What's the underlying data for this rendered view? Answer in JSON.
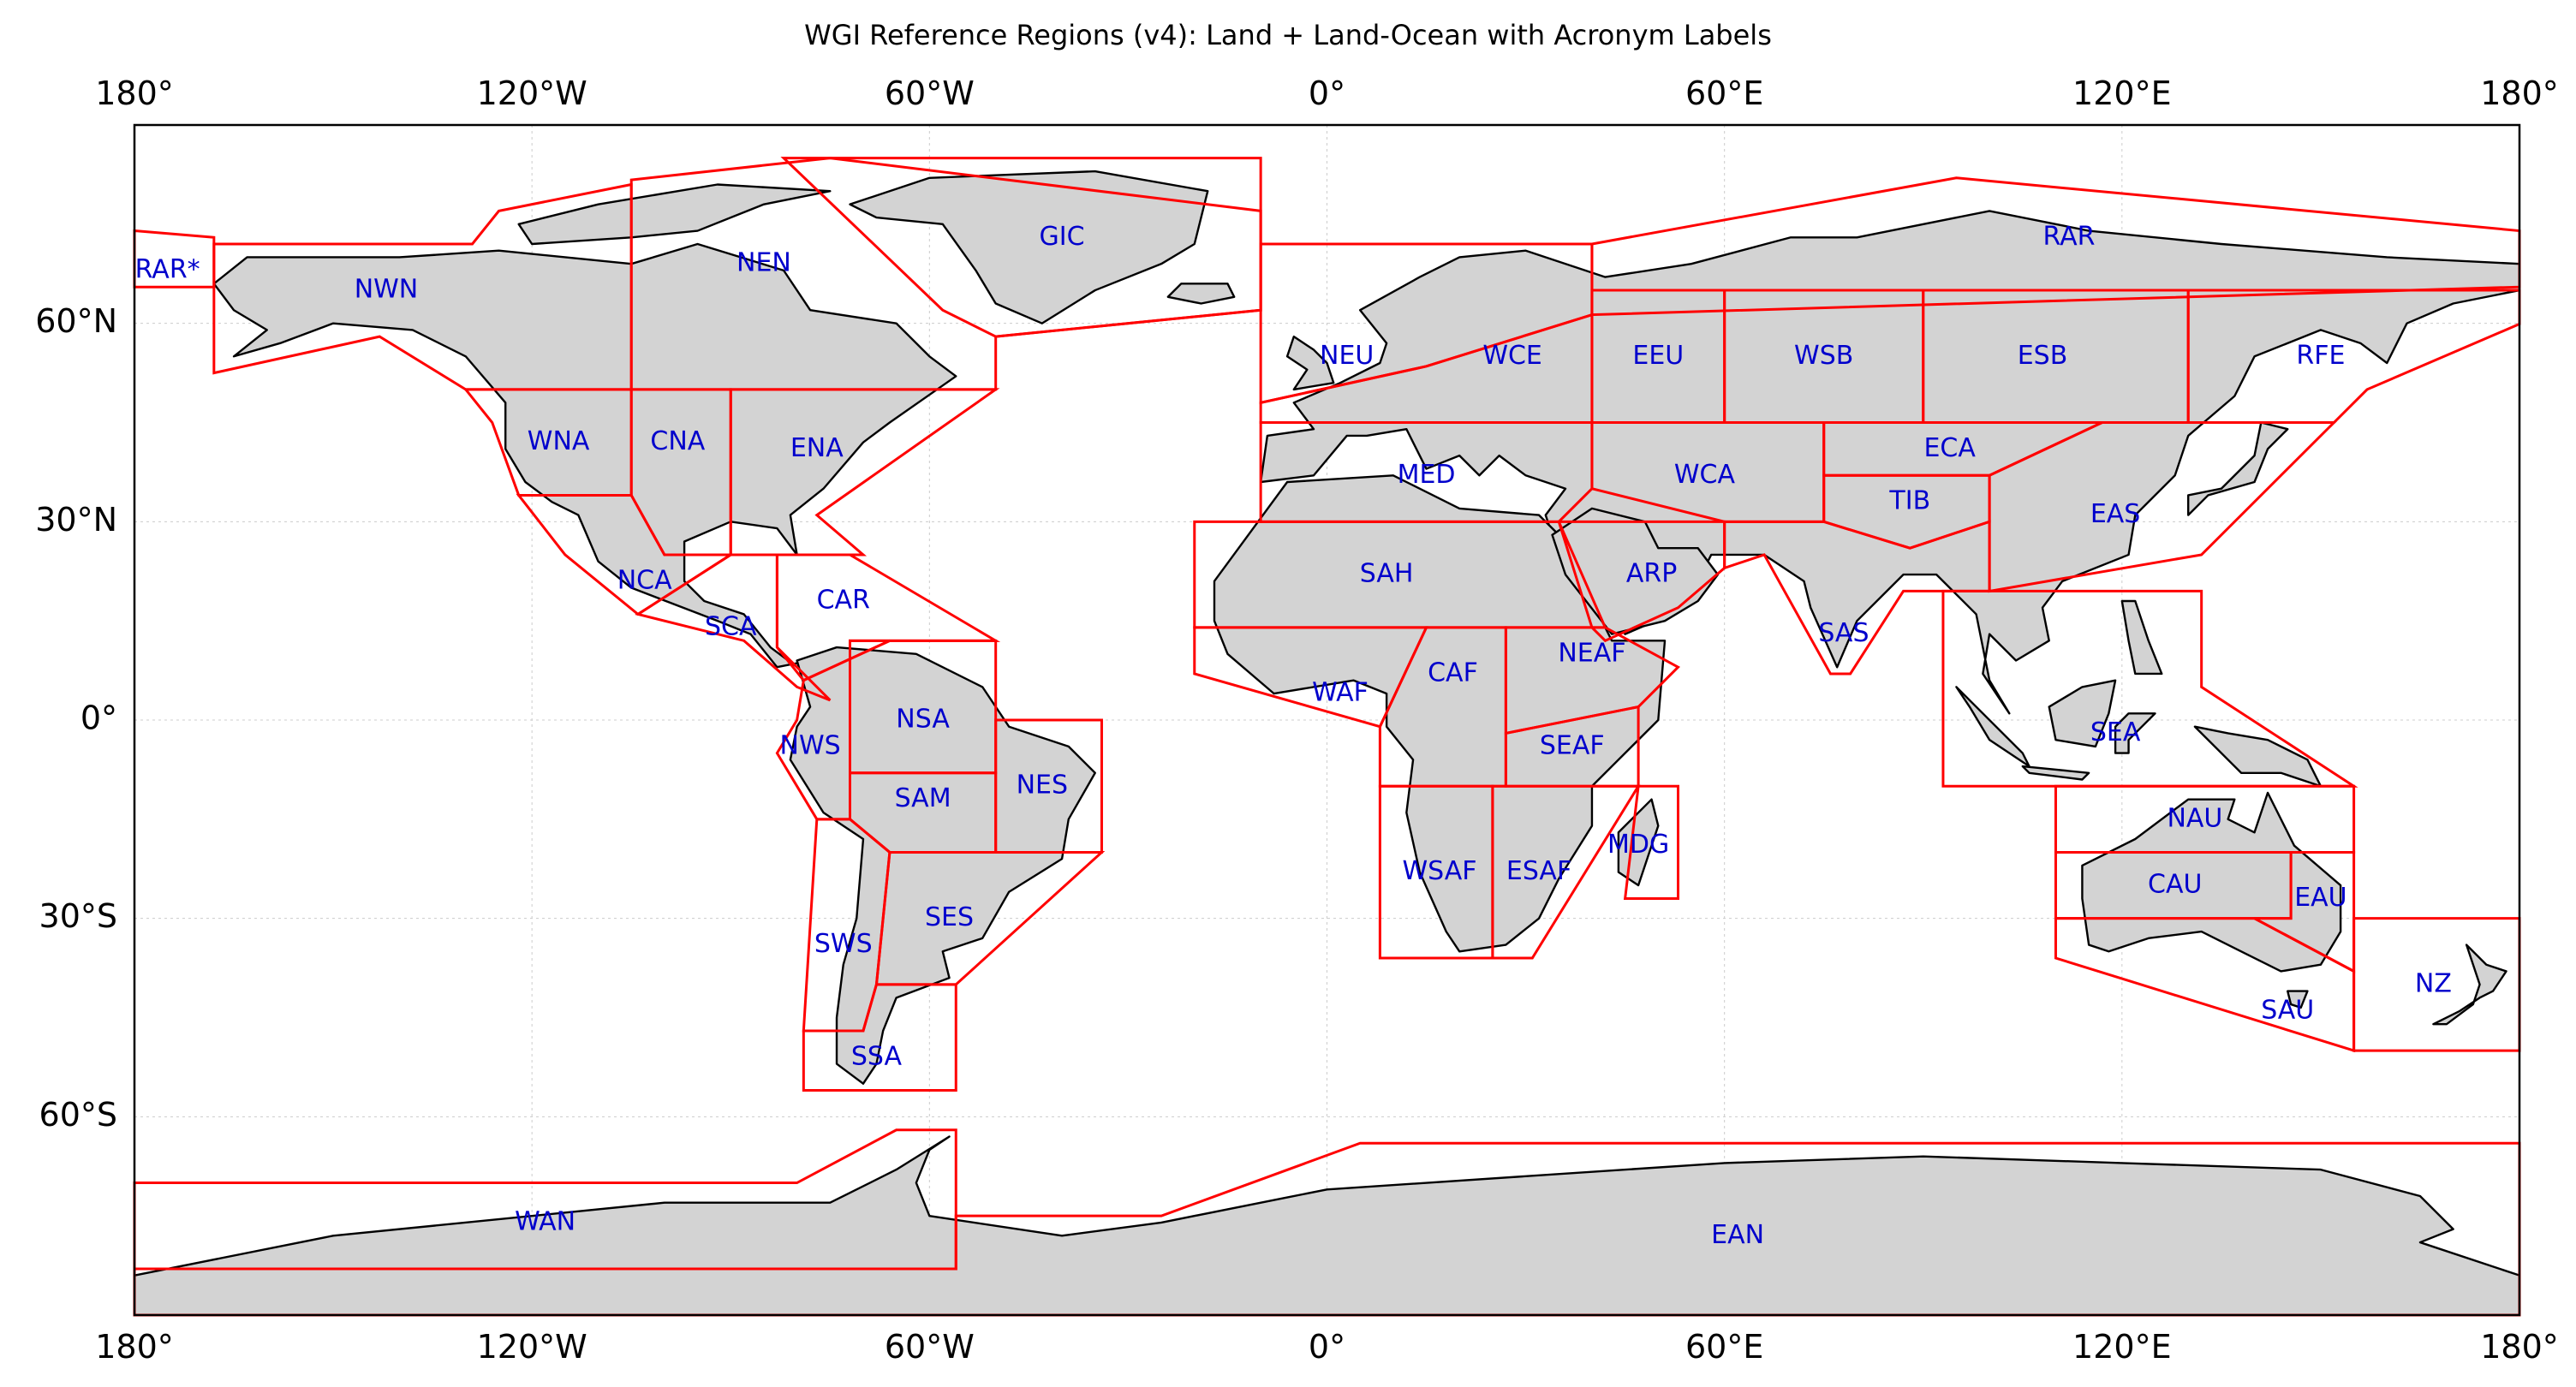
{
  "title": "WGI Reference Regions (v4): Land + Land-Ocean with Acronym Labels",
  "axes": {
    "lon_ticks": [
      {
        "lon": -180,
        "label": "180°"
      },
      {
        "lon": -120,
        "label": "120°W"
      },
      {
        "lon": -60,
        "label": "60°W"
      },
      {
        "lon": 0,
        "label": "0°"
      },
      {
        "lon": 60,
        "label": "60°E"
      },
      {
        "lon": 120,
        "label": "120°E"
      },
      {
        "lon": 180,
        "label": "180°"
      }
    ],
    "lat_ticks": [
      {
        "lat": 60,
        "label": "60°N"
      },
      {
        "lat": 30,
        "label": "30°N"
      },
      {
        "lat": 0,
        "label": "0°"
      },
      {
        "lat": -30,
        "label": "30°S"
      },
      {
        "lat": -60,
        "label": "60°S"
      }
    ],
    "lon_range": [
      -180,
      180
    ],
    "lat_range": [
      -90,
      90
    ],
    "grid": true
  },
  "colors": {
    "land": "#d3d3d3",
    "coast": "#000000",
    "region_outline": "#ff0000",
    "label": "#0000cc"
  },
  "regions": [
    {
      "acronym": "RAR*",
      "label_lon": -175,
      "label_lat": 68,
      "polygon": [
        [
          -180,
          74
        ],
        [
          -168,
          73
        ],
        [
          -168,
          65.5
        ],
        [
          -180,
          65.5
        ]
      ]
    },
    {
      "acronym": "NWN",
      "label_lon": -142,
      "label_lat": 65,
      "polygon": [
        [
          -168,
          72
        ],
        [
          -129,
          72
        ],
        [
          -125,
          77
        ],
        [
          -105,
          81
        ],
        [
          -105,
          50
        ],
        [
          -130,
          50
        ],
        [
          -143,
          58
        ],
        [
          -168,
          52.5
        ]
      ]
    },
    {
      "acronym": "NEN",
      "label_lon": -85,
      "label_lat": 69,
      "polygon": [
        [
          -105,
          50
        ],
        [
          -105,
          81.7
        ],
        [
          -75,
          85
        ],
        [
          -10,
          77
        ],
        [
          -10,
          62
        ],
        [
          -50,
          58
        ],
        [
          -50,
          50
        ]
      ]
    },
    {
      "acronym": "GIC",
      "label_lon": -40,
      "label_lat": 73,
      "polygon": [
        [
          -82,
          85
        ],
        [
          -10,
          85
        ],
        [
          -10,
          62
        ],
        [
          -50,
          58
        ],
        [
          -58,
          62
        ]
      ]
    },
    {
      "acronym": "WNA",
      "label_lon": -116,
      "label_lat": 42,
      "polygon": [
        [
          -130,
          50
        ],
        [
          -105,
          50
        ],
        [
          -105,
          34
        ],
        [
          -122,
          34
        ],
        [
          -126,
          45
        ]
      ]
    },
    {
      "acronym": "CNA",
      "label_lon": -98,
      "label_lat": 42,
      "polygon": [
        [
          -105,
          50
        ],
        [
          -90,
          50
        ],
        [
          -90,
          25
        ],
        [
          -100,
          25
        ],
        [
          -105,
          34
        ]
      ]
    },
    {
      "acronym": "ENA",
      "label_lon": -77,
      "label_lat": 41,
      "polygon": [
        [
          -90,
          50
        ],
        [
          -50,
          50
        ],
        [
          -77,
          31
        ],
        [
          -70,
          25
        ],
        [
          -90,
          25
        ]
      ]
    },
    {
      "acronym": "NCA",
      "label_lon": -103,
      "label_lat": 21,
      "polygon": [
        [
          -122,
          34
        ],
        [
          -105,
          34
        ],
        [
          -100,
          25
        ],
        [
          -90,
          25
        ],
        [
          -104,
          16
        ],
        [
          -115,
          25
        ]
      ]
    },
    {
      "acronym": "SCA",
      "label_lon": -90,
      "label_lat": 14,
      "polygon": [
        [
          -104,
          16
        ],
        [
          -90,
          25
        ],
        [
          -83,
          25
        ],
        [
          -83,
          11
        ],
        [
          -75,
          3
        ],
        [
          -80,
          5
        ],
        [
          -88,
          12
        ]
      ]
    },
    {
      "acronym": "CAR",
      "label_lon": -73,
      "label_lat": 18,
      "polygon": [
        [
          -83,
          25
        ],
        [
          -72,
          25
        ],
        [
          -50,
          12
        ],
        [
          -66,
          12
        ],
        [
          -79,
          6
        ],
        [
          -83,
          11
        ]
      ]
    },
    {
      "acronym": "NWS",
      "label_lon": -78,
      "label_lat": -4,
      "polygon": [
        [
          -79,
          6
        ],
        [
          -66,
          12
        ],
        [
          -72,
          12
        ],
        [
          -72,
          -8
        ],
        [
          -72,
          -15
        ],
        [
          -77,
          -15
        ],
        [
          -83,
          -5
        ],
        [
          -80,
          0
        ]
      ]
    },
    {
      "acronym": "NSA",
      "label_lon": -61,
      "label_lat": 0,
      "polygon": [
        [
          -72,
          12
        ],
        [
          -50,
          12
        ],
        [
          -50,
          0
        ],
        [
          -50,
          -8
        ],
        [
          -72,
          -8
        ]
      ]
    },
    {
      "acronym": "NES",
      "label_lon": -43,
      "label_lat": -10,
      "polygon": [
        [
          -50,
          0
        ],
        [
          -34,
          0
        ],
        [
          -34,
          -20
        ],
        [
          -50,
          -20
        ]
      ]
    },
    {
      "acronym": "SAM",
      "label_lon": -61,
      "label_lat": -12,
      "polygon": [
        [
          -72,
          -8
        ],
        [
          -50,
          -8
        ],
        [
          -50,
          -20
        ],
        [
          -66,
          -20
        ],
        [
          -72,
          -15
        ]
      ]
    },
    {
      "acronym": "SWS",
      "label_lon": -73,
      "label_lat": -34,
      "polygon": [
        [
          -77,
          -15
        ],
        [
          -72,
          -15
        ],
        [
          -66,
          -20
        ],
        [
          -68,
          -40
        ],
        [
          -70,
          -47
        ],
        [
          -79,
          -47
        ]
      ]
    },
    {
      "acronym": "SES",
      "label_lon": -57,
      "label_lat": -30,
      "polygon": [
        [
          -66,
          -20
        ],
        [
          -34,
          -20
        ],
        [
          -56,
          -40
        ],
        [
          -68,
          -40
        ]
      ]
    },
    {
      "acronym": "SSA",
      "label_lon": -68,
      "label_lat": -51,
      "polygon": [
        [
          -79,
          -47
        ],
        [
          -70,
          -47
        ],
        [
          -68,
          -40
        ],
        [
          -56,
          -40
        ],
        [
          -56,
          -56
        ],
        [
          -79,
          -56
        ]
      ]
    },
    {
      "acronym": "NEU",
      "label_lon": 3,
      "label_lat": 55,
      "polygon": [
        [
          -10,
          48
        ],
        [
          -10,
          72
        ],
        [
          40,
          72
        ],
        [
          40,
          61.3
        ],
        [
          15,
          53.5
        ]
      ]
    },
    {
      "acronym": "WCE",
      "label_lon": 28,
      "label_lat": 55,
      "polygon": [
        [
          -10,
          48
        ],
        [
          15,
          53.5
        ],
        [
          40,
          61.3
        ],
        [
          40,
          45
        ],
        [
          -10,
          45
        ]
      ]
    },
    {
      "acronym": "MED",
      "label_lon": 15,
      "label_lat": 37,
      "polygon": [
        [
          -10,
          45
        ],
        [
          40,
          45
        ],
        [
          40,
          35
        ],
        [
          35,
          30
        ],
        [
          -10,
          30
        ]
      ]
    },
    {
      "acronym": "SAH",
      "label_lon": 9,
      "label_lat": 22,
      "polygon": [
        [
          -20,
          30
        ],
        [
          35,
          30
        ],
        [
          42,
          14
        ],
        [
          -20,
          14
        ]
      ]
    },
    {
      "acronym": "WAF",
      "label_lon": 2,
      "label_lat": 4,
      "polygon": [
        [
          -20,
          14
        ],
        [
          15,
          14
        ],
        [
          8,
          -1
        ],
        [
          -20,
          7
        ]
      ]
    },
    {
      "acronym": "CAF",
      "label_lon": 19,
      "label_lat": 7,
      "polygon": [
        [
          15,
          14
        ],
        [
          27,
          14
        ],
        [
          27,
          -10
        ],
        [
          8,
          -10
        ],
        [
          8,
          -1
        ]
      ]
    },
    {
      "acronym": "NEAF",
      "label_lon": 40,
      "label_lat": 10,
      "polygon": [
        [
          27,
          14
        ],
        [
          42,
          14
        ],
        [
          53,
          8
        ],
        [
          47,
          2
        ],
        [
          27,
          -2
        ]
      ]
    },
    {
      "acronym": "SEAF",
      "label_lon": 37,
      "label_lat": -4,
      "polygon": [
        [
          27,
          -2
        ],
        [
          47,
          2
        ],
        [
          47,
          -10
        ],
        [
          27,
          -10
        ]
      ]
    },
    {
      "acronym": "WSAF",
      "label_lon": 17,
      "label_lat": -23,
      "polygon": [
        [
          8,
          -10
        ],
        [
          25,
          -10
        ],
        [
          25,
          -36
        ],
        [
          8,
          -36
        ]
      ]
    },
    {
      "acronym": "ESAF",
      "label_lon": 32,
      "label_lat": -23,
      "polygon": [
        [
          25,
          -10
        ],
        [
          47,
          -10
        ],
        [
          31,
          -36
        ],
        [
          25,
          -36
        ]
      ]
    },
    {
      "acronym": "MDG",
      "label_lon": 47,
      "label_lat": -19,
      "polygon": [
        [
          47,
          -10
        ],
        [
          53,
          -10
        ],
        [
          53,
          -27
        ],
        [
          45,
          -27
        ]
      ]
    },
    {
      "acronym": "RAR",
      "label_lon": 112,
      "label_lat": 73,
      "polygon": [
        [
          40,
          72
        ],
        [
          95,
          82
        ],
        [
          180,
          74
        ],
        [
          180,
          65.5
        ],
        [
          40,
          61.3
        ]
      ]
    },
    {
      "acronym": "EEU",
      "label_lon": 50,
      "label_lat": 55,
      "polygon": [
        [
          40,
          65
        ],
        [
          60,
          65
        ],
        [
          60,
          45
        ],
        [
          40,
          45
        ]
      ]
    },
    {
      "acronym": "WSB",
      "label_lon": 75,
      "label_lat": 55,
      "polygon": [
        [
          60,
          65
        ],
        [
          90,
          65
        ],
        [
          90,
          45
        ],
        [
          60,
          45
        ]
      ]
    },
    {
      "acronym": "ESB",
      "label_lon": 108,
      "label_lat": 55,
      "polygon": [
        [
          90,
          65
        ],
        [
          130,
          65
        ],
        [
          130,
          45
        ],
        [
          90,
          45
        ]
      ]
    },
    {
      "acronym": "RFE",
      "label_lon": 150,
      "label_lat": 55,
      "polygon": [
        [
          130,
          65
        ],
        [
          180,
          65
        ],
        [
          180,
          59.9
        ],
        [
          157,
          50
        ],
        [
          152,
          45
        ],
        [
          130,
          45
        ]
      ]
    },
    {
      "acronym": "WCA",
      "label_lon": 57,
      "label_lat": 37,
      "polygon": [
        [
          40,
          45
        ],
        [
          75,
          45
        ],
        [
          75,
          30
        ],
        [
          60,
          30
        ],
        [
          40,
          35
        ]
      ]
    },
    {
      "acronym": "ECA",
      "label_lon": 94,
      "label_lat": 41,
      "polygon": [
        [
          75,
          45
        ],
        [
          117,
          45
        ],
        [
          100,
          37
        ],
        [
          75,
          37
        ]
      ]
    },
    {
      "acronym": "TIB",
      "label_lon": 88,
      "label_lat": 33,
      "polygon": [
        [
          75,
          37
        ],
        [
          100,
          37
        ],
        [
          100,
          30
        ],
        [
          88,
          26
        ],
        [
          75,
          30
        ]
      ]
    },
    {
      "acronym": "EAS",
      "label_lon": 119,
      "label_lat": 31,
      "polygon": [
        [
          100,
          37
        ],
        [
          117,
          45
        ],
        [
          152,
          45
        ],
        [
          132,
          25
        ],
        [
          100,
          19.5
        ],
        [
          100,
          30
        ]
      ]
    },
    {
      "acronym": "ARP",
      "label_lon": 49,
      "label_lat": 22,
      "polygon": [
        [
          35,
          30
        ],
        [
          60,
          30
        ],
        [
          60,
          23
        ],
        [
          53,
          17
        ],
        [
          42,
          12
        ],
        [
          40,
          14
        ]
      ]
    },
    {
      "acronym": "SAS",
      "label_lon": 78,
      "label_lat": 13,
      "polygon": [
        [
          60,
          30
        ],
        [
          75,
          30
        ],
        [
          88,
          26
        ],
        [
          100,
          30
        ],
        [
          100,
          19.5
        ],
        [
          95,
          19.5
        ],
        [
          87,
          19.5
        ],
        [
          79,
          7
        ],
        [
          76,
          7
        ],
        [
          66,
          25
        ],
        [
          60,
          23
        ]
      ]
    },
    {
      "acronym": "SEA",
      "label_lon": 119,
      "label_lat": -2,
      "polygon": [
        [
          93,
          19.5
        ],
        [
          132,
          19.5
        ],
        [
          132,
          5
        ],
        [
          155,
          -10
        ],
        [
          93,
          -10
        ]
      ]
    },
    {
      "acronym": "NAU",
      "label_lon": 131,
      "label_lat": -15,
      "polygon": [
        [
          110,
          -10
        ],
        [
          155,
          -10
        ],
        [
          155,
          -20
        ],
        [
          110,
          -20
        ]
      ]
    },
    {
      "acronym": "CAU",
      "label_lon": 128,
      "label_lat": -25,
      "polygon": [
        [
          110,
          -20
        ],
        [
          145.5,
          -20
        ],
        [
          145.5,
          -30
        ],
        [
          110,
          -30
        ]
      ]
    },
    {
      "acronym": "EAU",
      "label_lon": 150,
      "label_lat": -27,
      "polygon": [
        [
          145.5,
          -20
        ],
        [
          155,
          -20
        ],
        [
          155,
          -38
        ],
        [
          140,
          -30
        ],
        [
          145.5,
          -30
        ]
      ]
    },
    {
      "acronym": "SAU",
      "label_lon": 145,
      "label_lat": -44,
      "polygon": [
        [
          110,
          -30
        ],
        [
          140,
          -30
        ],
        [
          155,
          -38
        ],
        [
          155,
          -50
        ],
        [
          110,
          -36
        ]
      ]
    },
    {
      "acronym": "NZ",
      "label_lon": 167,
      "label_lat": -40,
      "polygon": [
        [
          155,
          -30
        ],
        [
          180,
          -30
        ],
        [
          180,
          -50
        ],
        [
          155,
          -50
        ]
      ]
    },
    {
      "acronym": "WAN",
      "label_lon": -118,
      "label_lat": -76,
      "polygon": [
        [
          -180,
          -70
        ],
        [
          -80,
          -70
        ],
        [
          -65,
          -62
        ],
        [
          -56,
          -62
        ],
        [
          -56,
          -83
        ],
        [
          -180,
          -83
        ]
      ]
    },
    {
      "acronym": "EAN",
      "label_lon": 62,
      "label_lat": -78,
      "polygon": [
        [
          -56,
          -75
        ],
        [
          -25,
          -75
        ],
        [
          5,
          -64
        ],
        [
          180,
          -64
        ],
        [
          180,
          -90
        ],
        [
          -180,
          -90
        ],
        [
          -180,
          -83
        ],
        [
          -56,
          -83
        ]
      ]
    }
  ]
}
